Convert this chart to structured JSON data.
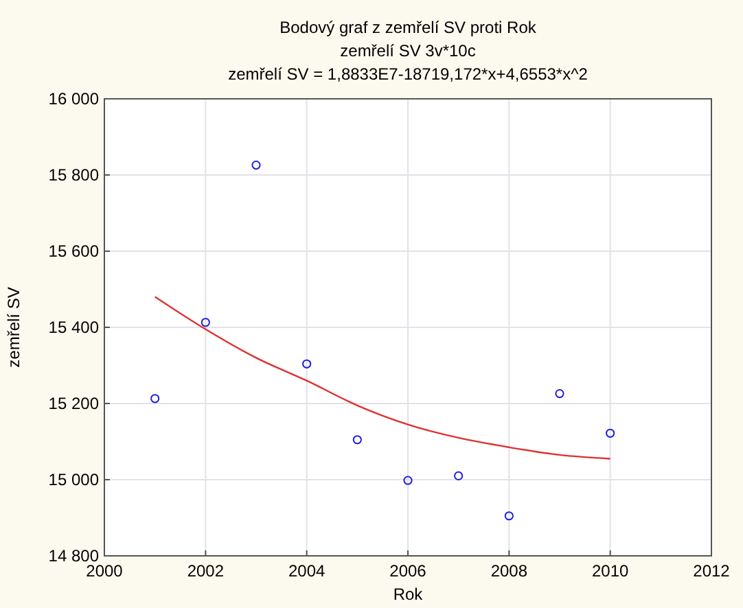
{
  "chart_data": {
    "type": "scatter",
    "title": "Bodový graf z zemřelí SV proti Rok",
    "subtitle": "zemřelí SV 3v*10c",
    "annotations": [
      "zemřelí SV = 1,8833E7-18719,172*x+4,6553*x^2"
    ],
    "xlabel": "Rok",
    "ylabel": "zemřelí SV",
    "xlim": [
      2000,
      2012
    ],
    "xticks": [
      2000,
      2002,
      2004,
      2006,
      2008,
      2010,
      2012
    ],
    "ylim": [
      14800,
      16000
    ],
    "yticks": [
      {
        "value": 14800,
        "label": "14 800"
      },
      {
        "value": 15000,
        "label": "15 000"
      },
      {
        "value": 15200,
        "label": "15 200"
      },
      {
        "value": 15400,
        "label": "15 400"
      },
      {
        "value": 15600,
        "label": "15 600"
      },
      {
        "value": 15800,
        "label": "15 800"
      },
      {
        "value": 16000,
        "label": "16 000"
      }
    ],
    "grid": true,
    "marker": "circle",
    "series": [
      {
        "color": "#2020e0",
        "x": [
          2001,
          2002,
          2003,
          2004,
          2005,
          2006,
          2007,
          2008,
          2009,
          2010
        ],
        "values": [
          15213,
          15413,
          15826,
          15304,
          15105,
          14998,
          15010,
          14905,
          15226,
          15122
        ]
      },
      {
        "type": "line",
        "marker": "none",
        "color": "#e03030",
        "x": [
          2001,
          2002,
          2003,
          2004,
          2005,
          2006,
          2007,
          2008,
          2009,
          2010
        ],
        "values": [
          15480,
          15395,
          15320,
          15260,
          15195,
          15145,
          15110,
          15085,
          15065,
          15055
        ]
      }
    ]
  }
}
